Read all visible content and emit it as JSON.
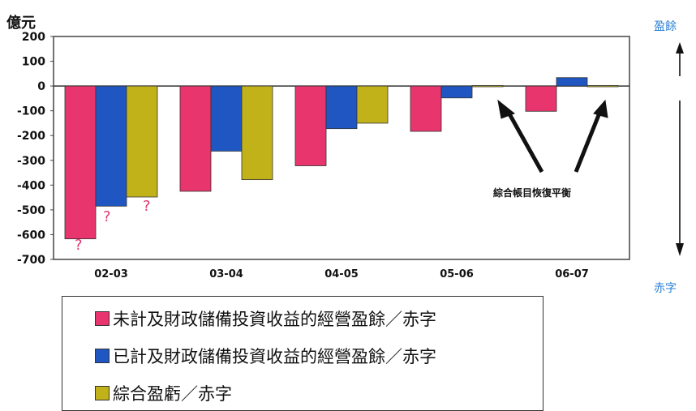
{
  "unit_label": "億元",
  "side_top": "盈餘",
  "side_bottom": "赤字",
  "annotation": "綜合帳目恢復平衡",
  "question_mark": "?",
  "colors": {
    "series1": "#e8356d",
    "series2": "#1f56c2",
    "series3": "#c2b21a"
  },
  "legend": [
    {
      "label": "未計及財政儲備投資收益的經營盈餘／赤字"
    },
    {
      "label": "已計及財政儲備投資收益的經營盈餘／赤字"
    },
    {
      "label": "綜合盈虧／赤字"
    }
  ],
  "chart_data": {
    "type": "bar",
    "categories": [
      "02-03",
      "03-04",
      "04-05",
      "05-06",
      "06-07"
    ],
    "ylim": [
      -700,
      200
    ],
    "yticks": [
      200,
      100,
      0,
      -100,
      -200,
      -300,
      -400,
      -500,
      -600,
      -700
    ],
    "grid": false,
    "series": [
      {
        "name": "未計及財政儲備投資收益的經營盈餘／赤字",
        "values": [
          -617,
          -425,
          -322,
          -183,
          -102
        ]
      },
      {
        "name": "已計及財政儲備投資收益的經營盈餘／赤字",
        "values": [
          -485,
          -263,
          -172,
          -48,
          34
        ]
      },
      {
        "name": "綜合盈虧／赤字",
        "values": [
          -448,
          -378,
          -150,
          2,
          2
        ]
      }
    ]
  }
}
